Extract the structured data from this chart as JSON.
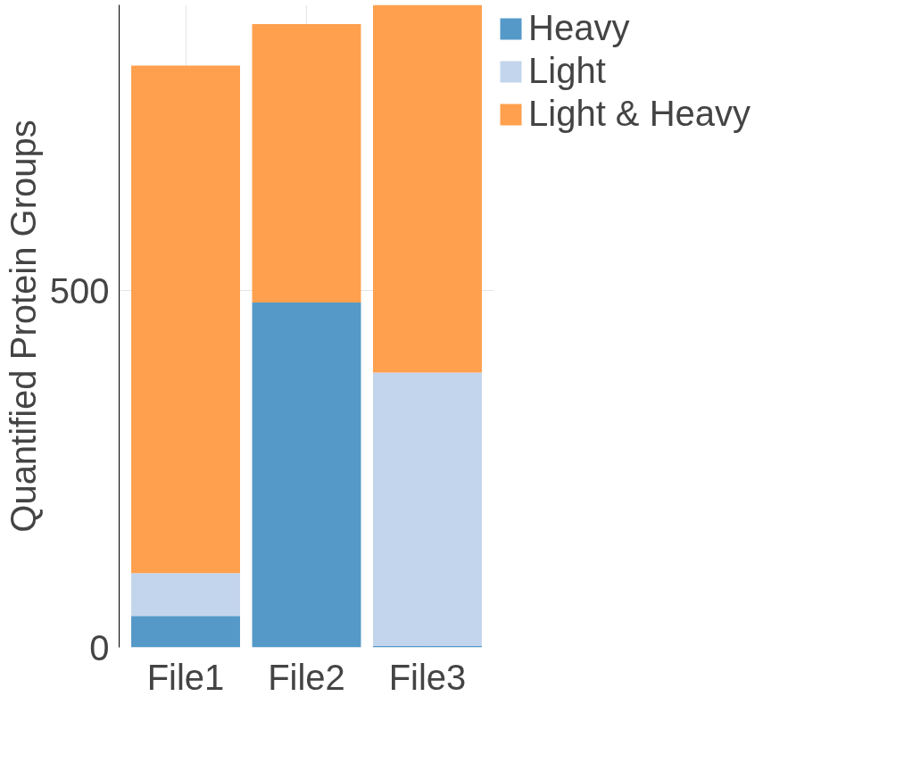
{
  "chart_data": {
    "type": "bar",
    "stacked": true,
    "ylabel": "Quantified Protein Groups",
    "categories": [
      "File1",
      "File2",
      "File3"
    ],
    "series": [
      {
        "name": "Heavy",
        "color": "#5599c8",
        "values": [
          44,
          483,
          2
        ]
      },
      {
        "name": "Light",
        "color": "#c3d5ec",
        "values": [
          60,
          0,
          383
        ]
      },
      {
        "name": "Light & Heavy",
        "color": "#ffa04e",
        "values": [
          711,
          390,
          515
        ]
      }
    ],
    "ylim": [
      0,
      900
    ],
    "yticks": [
      0,
      500
    ],
    "grid": true,
    "legend": "right"
  }
}
